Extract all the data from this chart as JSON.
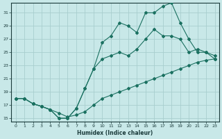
{
  "xlabel": "Humidex (Indice chaleur)",
  "background_color": "#c8e8e8",
  "grid_color": "#a8cece",
  "line_color": "#1a7060",
  "xlim": [
    -0.5,
    23.5
  ],
  "ylim": [
    14.5,
    32.5
  ],
  "xticks": [
    0,
    1,
    2,
    3,
    4,
    5,
    6,
    7,
    8,
    9,
    10,
    11,
    12,
    13,
    14,
    15,
    16,
    17,
    18,
    19,
    20,
    21,
    22,
    23
  ],
  "yticks": [
    15,
    17,
    19,
    21,
    23,
    25,
    27,
    29,
    31
  ],
  "line1_x": [
    0,
    1,
    2,
    3,
    4,
    5,
    6,
    7,
    8,
    9,
    10,
    11,
    12,
    13,
    14,
    15,
    16,
    17,
    18,
    19,
    20,
    21,
    22,
    23
  ],
  "line1_y": [
    18.0,
    18.0,
    17.2,
    16.8,
    16.3,
    15.8,
    15.2,
    15.5,
    16.0,
    17.0,
    18.0,
    18.5,
    19.0,
    19.5,
    20.0,
    20.5,
    21.0,
    21.5,
    22.0,
    22.5,
    23.0,
    23.5,
    23.8,
    24.0
  ],
  "line2_x": [
    0,
    1,
    2,
    3,
    4,
    5,
    6,
    7,
    8,
    9,
    10,
    11,
    12,
    13,
    14,
    15,
    16,
    17,
    18,
    19,
    20,
    21,
    22,
    23
  ],
  "line2_y": [
    18.0,
    18.0,
    17.2,
    16.8,
    16.3,
    15.0,
    15.0,
    16.5,
    19.5,
    22.5,
    24.0,
    24.5,
    25.0,
    24.5,
    25.5,
    27.0,
    28.5,
    27.5,
    27.5,
    27.0,
    25.0,
    25.5,
    25.0,
    24.5
  ],
  "line3_x": [
    0,
    1,
    2,
    3,
    4,
    5,
    6,
    7,
    8,
    9,
    10,
    11,
    12,
    13,
    14,
    15,
    16,
    17,
    18,
    19,
    20,
    21,
    22,
    23
  ],
  "line3_y": [
    18.0,
    18.0,
    17.2,
    16.8,
    16.3,
    15.0,
    15.0,
    16.5,
    19.5,
    22.5,
    26.5,
    27.5,
    29.5,
    29.0,
    28.0,
    31.0,
    31.0,
    32.0,
    32.5,
    29.5,
    27.0,
    25.0,
    25.0,
    24.0
  ]
}
